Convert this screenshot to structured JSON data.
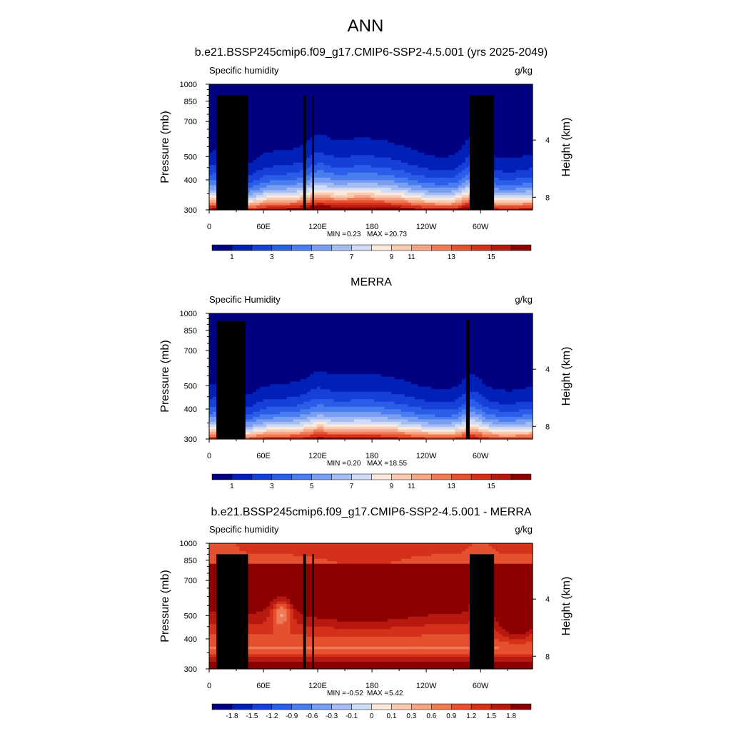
{
  "figure": {
    "title": "ANN"
  },
  "chart_data": [
    {
      "type": "heatmap",
      "title": "b.e21.BSSP245cmip6.f09_g17.CMIP6-SSP2-4.5.001 (yrs 2025-2049)",
      "left_label": "Specific humidity",
      "units": "g/kg",
      "xlabel": "",
      "ylabel": "Pressure (mb)",
      "ylabel_right": "Height (km)",
      "x_ticks": [
        "0",
        "60E",
        "120E",
        "180",
        "120W",
        "60W"
      ],
      "x_tick_lon": [
        0,
        60,
        120,
        180,
        240,
        300
      ],
      "xlim": [
        0,
        357.5
      ],
      "y_ticks": [
        "300",
        "400",
        "500",
        "700",
        "850",
        "1000"
      ],
      "y_tick_p": [
        300,
        400,
        500,
        700,
        850,
        1000
      ],
      "ylim": [
        1000,
        300
      ],
      "log_pressure": true,
      "right_ticks": [
        "8",
        "4"
      ],
      "right_tick_km": [
        8,
        4
      ],
      "stats": {
        "min_label": "MIN =",
        "min": "0.23",
        "max_label": "MAX =",
        "max": "20.73"
      },
      "levels": [
        1,
        2,
        3,
        4,
        5,
        6,
        7,
        8,
        9,
        10,
        11,
        12,
        13,
        14,
        15
      ],
      "level_labels": [
        "1",
        "3",
        "5",
        "7",
        "9",
        "11",
        "13",
        "15"
      ],
      "colors": [
        "#000080",
        "#0020b8",
        "#1640d8",
        "#2a5de8",
        "#4a7df0",
        "#7a9ef0",
        "#a6bdf2",
        "#d0dcf6",
        "#fbe9dc",
        "#f8cab0",
        "#f3a585",
        "#ee7a56",
        "#e5502e",
        "#d4301a",
        "#b71810",
        "#8c0000"
      ],
      "field": "model"
    },
    {
      "type": "heatmap",
      "title": "MERRA",
      "left_label": "Specific Humidity",
      "units": "g/kg",
      "xlabel": "",
      "ylabel": "Pressure (mb)",
      "ylabel_right": "Height (km)",
      "x_ticks": [
        "0",
        "60E",
        "120E",
        "180",
        "120W",
        "60W"
      ],
      "x_tick_lon": [
        0,
        60,
        120,
        180,
        240,
        300
      ],
      "xlim": [
        0,
        357.5
      ],
      "y_ticks": [
        "300",
        "400",
        "500",
        "700",
        "850",
        "1000"
      ],
      "y_tick_p": [
        300,
        400,
        500,
        700,
        850,
        1000
      ],
      "ylim": [
        1000,
        300
      ],
      "log_pressure": true,
      "right_ticks": [
        "8",
        "4"
      ],
      "right_tick_km": [
        8,
        4
      ],
      "stats": {
        "min_label": "MIN =",
        "min": "0.20",
        "max_label": "MAX =",
        "max": "18.55"
      },
      "levels": [
        1,
        2,
        3,
        4,
        5,
        6,
        7,
        8,
        9,
        10,
        11,
        12,
        13,
        14,
        15
      ],
      "level_labels": [
        "1",
        "3",
        "5",
        "7",
        "9",
        "11",
        "13",
        "15"
      ],
      "colors": [
        "#000080",
        "#0020b8",
        "#1640d8",
        "#2a5de8",
        "#4a7df0",
        "#7a9ef0",
        "#a6bdf2",
        "#d0dcf6",
        "#fbe9dc",
        "#f8cab0",
        "#f3a585",
        "#ee7a56",
        "#e5502e",
        "#d4301a",
        "#b71810",
        "#8c0000"
      ],
      "field": "obs"
    },
    {
      "type": "heatmap",
      "title": "b.e21.BSSP245cmip6.f09_g17.CMIP6-SSP2-4.5.001 - MERRA",
      "left_label": "Specific humidity",
      "units": "g/kg",
      "xlabel": "",
      "ylabel": "Pressure (mb)",
      "ylabel_right": "Height (km)",
      "x_ticks": [
        "0",
        "60E",
        "120E",
        "180",
        "120W",
        "60W"
      ],
      "x_tick_lon": [
        0,
        60,
        120,
        180,
        240,
        300
      ],
      "xlim": [
        0,
        357.5
      ],
      "y_ticks": [
        "300",
        "400",
        "500",
        "700",
        "850",
        "1000"
      ],
      "y_tick_p": [
        300,
        400,
        500,
        700,
        850,
        1000
      ],
      "ylim": [
        1000,
        300
      ],
      "log_pressure": true,
      "right_ticks": [
        "8",
        "4"
      ],
      "right_tick_km": [
        8,
        4
      ],
      "stats": {
        "min_label": "MIN =",
        "min": "-0.52",
        "max_label": "MAX =",
        "max": "5.42"
      },
      "levels": [
        -1.8,
        -1.5,
        -1.2,
        -0.9,
        -0.6,
        -0.3,
        -0.1,
        0,
        0.1,
        0.3,
        0.6,
        0.9,
        1.2,
        1.5,
        1.8
      ],
      "level_labels": [
        "-1.8",
        "-1.5",
        "-1.2",
        "-0.9",
        "-0.6",
        "-0.3",
        "-0.1",
        "0",
        "0.1",
        "0.3",
        "0.6",
        "0.9",
        "1.2",
        "1.5",
        "1.8"
      ],
      "colors": [
        "#000080",
        "#0020b8",
        "#1640d8",
        "#2a5de8",
        "#4a7df0",
        "#7a9ef0",
        "#a6bdf2",
        "#d0dcf6",
        "#fbe9dc",
        "#f8cab0",
        "#f3a585",
        "#ee7a56",
        "#e5502e",
        "#d4301a",
        "#b71810",
        "#8c0000"
      ],
      "field": "diff"
    }
  ]
}
